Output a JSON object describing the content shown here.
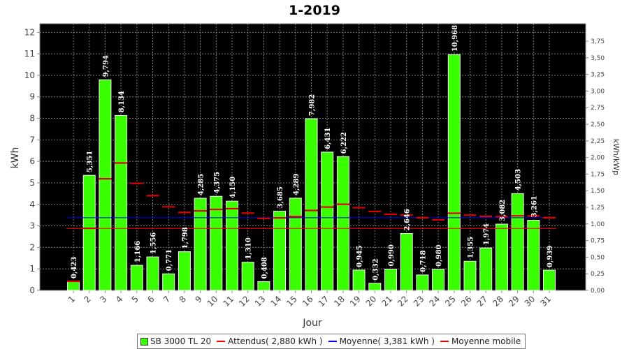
{
  "colors": {
    "bar": "#3aff00",
    "bar_edge": "#f3f3f3",
    "plot_bg": "#000000",
    "attendu": "#ff0000",
    "moyenne": "#0000ff",
    "moyenne_mobile": "#e00000",
    "grid": "#7a7a7a"
  },
  "legend": {
    "series1": "SB 3000 TL 20",
    "attendu": "Attendus( 2,880 kWh )",
    "moyenne": "Moyenne( 3,381 kWh )",
    "moyenne_mobile": "Moyenne mobile"
  },
  "chart_data": {
    "type": "bar",
    "title": "1-2019",
    "xlabel": "Jour",
    "ylabel": "kWh",
    "y2label": "kWh/kWp",
    "ylim": [
      0,
      12.4
    ],
    "yticks": [
      "0",
      "1",
      "2",
      "3",
      "4",
      "5",
      "6",
      "7",
      "8",
      "9",
      "10",
      "11",
      "12"
    ],
    "y2ticks": [
      "0,00",
      "0,25",
      "0,50",
      "0,75",
      "1,00",
      "1,25",
      "1,50",
      "1,75",
      "2,00",
      "2,25",
      "2,50",
      "2,75",
      "3,00",
      "3,25",
      "3,50",
      "3,75"
    ],
    "categories": [
      "1",
      "2",
      "3",
      "4",
      "5",
      "6",
      "7",
      "8",
      "9",
      "10",
      "11",
      "12",
      "13",
      "14",
      "15",
      "16",
      "17",
      "18",
      "19",
      "20",
      "21",
      "22",
      "23",
      "24",
      "25",
      "26",
      "27",
      "28",
      "29",
      "30",
      "31"
    ],
    "series": [
      {
        "name": "SB 3000 TL 20",
        "values": [
          0.423,
          5.351,
          9.794,
          8.134,
          1.166,
          1.556,
          0.771,
          1.798,
          4.285,
          4.375,
          4.15,
          1.31,
          0.408,
          3.685,
          4.289,
          7.982,
          6.431,
          6.222,
          0.945,
          0.332,
          0.99,
          2.646,
          0.718,
          0.98,
          10.968,
          1.355,
          1.974,
          3.082,
          4.503,
          3.261,
          0.939
        ],
        "labels": [
          "0,423",
          "5,351",
          "9,794",
          "8,134",
          "1,166",
          "1,556",
          "0,771",
          "1,798",
          "4,285",
          "4,375",
          "4,150",
          "1,310",
          "0,408",
          "3,685",
          "4,289",
          "7,982",
          "6,431",
          "6,222",
          "0,945",
          "0,332",
          "0,990",
          "2,646",
          "0,718",
          "0,980",
          "10,968",
          "1,355",
          "1,974",
          "3,082",
          "4,503",
          "3,261",
          "0,939"
        ]
      },
      {
        "name": "Attendus( 2,880 kWh )",
        "value": 2.88
      },
      {
        "name": "Moyenne( 3,381 kWh )",
        "value": 3.381
      },
      {
        "name": "Moyenne mobile",
        "values": [
          0.423,
          2.887,
          5.189,
          5.925,
          4.973,
          4.404,
          3.885,
          3.624,
          3.697,
          3.765,
          3.8,
          3.593,
          3.348,
          3.372,
          3.432,
          3.716,
          3.876,
          4.006,
          3.845,
          3.669,
          3.541,
          3.5,
          3.379,
          3.279,
          3.586,
          3.5,
          3.443,
          3.43,
          3.467,
          3.46,
          3.379
        ]
      }
    ],
    "grid": true,
    "legend_position": "bottom"
  }
}
